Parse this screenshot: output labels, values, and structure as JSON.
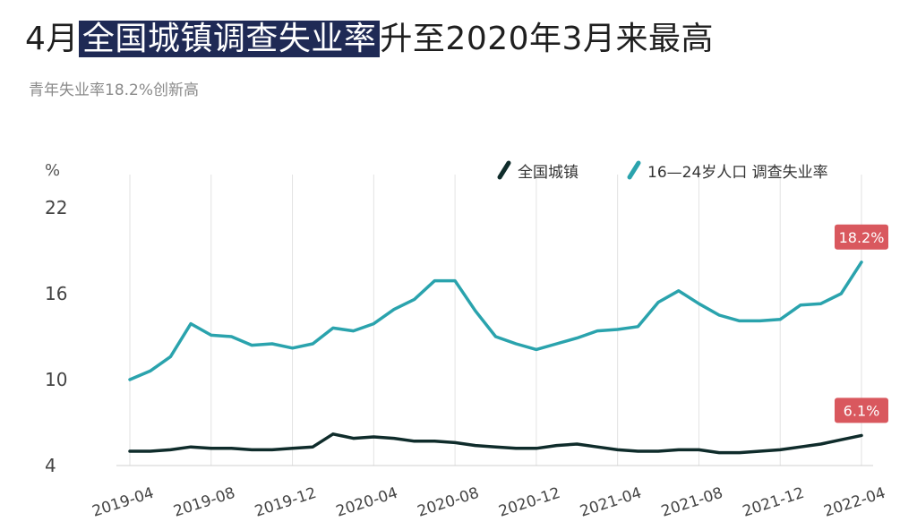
{
  "title": {
    "prefix": "4月",
    "highlight": "全国城镇调查失业率",
    "suffix": "升至2020年3月来最高"
  },
  "subtitle": "青年失业率18.2%创新高",
  "colors": {
    "national": "#0f2c2b",
    "youth": "#2aa3ad",
    "label_bg": "#d9585e",
    "grid": "#e2e2e2"
  },
  "chart_data": {
    "type": "line",
    "unit_label": "%",
    "ylim": [
      4,
      22
    ],
    "yticks": [
      "22",
      "16",
      "10",
      "4"
    ],
    "ytick_values": [
      22,
      16,
      10,
      4
    ],
    "x": [
      "2019-04",
      "2019-05",
      "2019-06",
      "2019-07",
      "2019-08",
      "2019-09",
      "2019-10",
      "2019-11",
      "2019-12",
      "2020-01",
      "2020-02",
      "2020-03",
      "2020-04",
      "2020-05",
      "2020-06",
      "2020-07",
      "2020-08",
      "2020-09",
      "2020-10",
      "2020-11",
      "2020-12",
      "2021-01",
      "2021-02",
      "2021-03",
      "2021-04",
      "2021-05",
      "2021-06",
      "2021-07",
      "2021-08",
      "2021-09",
      "2021-10",
      "2021-11",
      "2021-12",
      "2022-01",
      "2022-02",
      "2022-03",
      "2022-04"
    ],
    "xticks": [
      "2019-04",
      "2019-08",
      "2019-12",
      "2020-04",
      "2020-08",
      "2020-12",
      "2021-04",
      "2021-08",
      "2021-12",
      "2022-04"
    ],
    "series": [
      {
        "name": "全国城镇",
        "values": [
          5.0,
          5.0,
          5.1,
          5.3,
          5.2,
          5.2,
          5.1,
          5.1,
          5.2,
          5.3,
          6.2,
          5.9,
          6.0,
          5.9,
          5.7,
          5.7,
          5.6,
          5.4,
          5.3,
          5.2,
          5.2,
          5.4,
          5.5,
          5.3,
          5.1,
          5.0,
          5.0,
          5.1,
          5.1,
          4.9,
          4.9,
          5.0,
          5.1,
          5.3,
          5.5,
          5.8,
          6.1
        ]
      },
      {
        "name": "16—24岁人口 调查失业率",
        "values": [
          10.0,
          10.6,
          11.6,
          13.9,
          13.1,
          13.0,
          12.4,
          12.5,
          12.2,
          12.5,
          13.6,
          13.4,
          13.9,
          14.9,
          15.6,
          16.9,
          16.9,
          14.8,
          13.0,
          12.5,
          12.1,
          12.5,
          12.9,
          13.4,
          13.5,
          13.7,
          15.4,
          16.2,
          15.3,
          14.5,
          14.1,
          14.1,
          14.2,
          15.2,
          15.3,
          16.0,
          18.2
        ]
      }
    ],
    "end_labels": [
      "6.1%",
      "18.2%"
    ],
    "legend_position": "top-right",
    "grid": "vertical"
  }
}
